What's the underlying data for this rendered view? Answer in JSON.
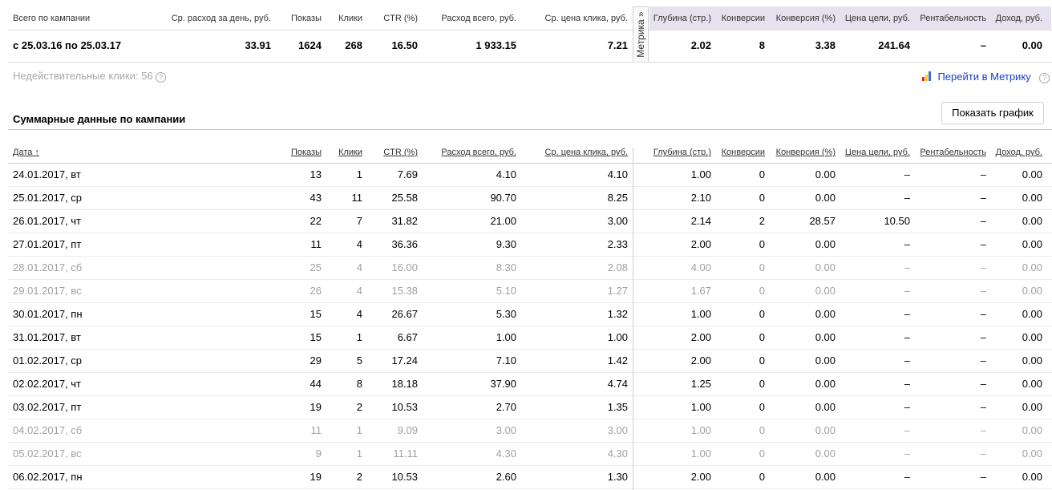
{
  "summary": {
    "labels": {
      "total": "Всего по кампании",
      "avg_spend": "Ср. расход за день, руб.",
      "shows": "Показы",
      "clicks": "Клики",
      "ctr": "CTR (%)",
      "spend_total": "Расход всего, руб.",
      "avg_cpc": "Ср. цена клика, руб.",
      "depth": "Глубина (стр.)",
      "conversions": "Конверсии",
      "conv_rate": "Конверсия (%)",
      "goal_cost": "Цена цели, руб.",
      "profitability": "Рентабельность",
      "income": "Доход, руб."
    },
    "values": {
      "period": "с 25.03.16 по 25.03.17",
      "avg_spend": "33.91",
      "shows": "1624",
      "clicks": "268",
      "ctr": "16.50",
      "spend_total": "1 933.15",
      "avg_cpc": "7.21",
      "depth": "2.02",
      "conversions": "8",
      "conv_rate": "3.38",
      "goal_cost": "241.64",
      "profitability": "–",
      "income": "0.00"
    },
    "metrika_tab": "Метрика »"
  },
  "invalid_clicks": {
    "label": "Недействительные клики: 56",
    "help": "?"
  },
  "metrika_link": {
    "label": "Перейти в Метрику",
    "help": "?"
  },
  "section": {
    "title": "Суммарные данные по кампании",
    "chart_button": "Показать график"
  },
  "table": {
    "headers": {
      "date": "Дата ↑",
      "shows": "Показы",
      "clicks": "Клики",
      "ctr": "CTR (%)",
      "spend_total": "Расход всего, руб.",
      "avg_cpc": "Ср. цена клика, руб.",
      "depth": "Глубина (стр.)",
      "conversions": "Конверсии",
      "conv_rate": "Конверсия (%)",
      "goal_cost": "Цена цели, руб.",
      "profitability": "Рентабельность",
      "income": "Доход, руб."
    },
    "rows": [
      {
        "date": "24.01.2017, вт",
        "shows": "13",
        "clicks": "1",
        "ctr": "7.69",
        "spend": "4.10",
        "cpc": "4.10",
        "depth": "1.00",
        "conv": "0",
        "conv_rate": "0.00",
        "goal": "–",
        "profit": "–",
        "income": "0.00",
        "weekend": false
      },
      {
        "date": "25.01.2017, ср",
        "shows": "43",
        "clicks": "11",
        "ctr": "25.58",
        "spend": "90.70",
        "cpc": "8.25",
        "depth": "2.10",
        "conv": "0",
        "conv_rate": "0.00",
        "goal": "–",
        "profit": "–",
        "income": "0.00",
        "weekend": false
      },
      {
        "date": "26.01.2017, чт",
        "shows": "22",
        "clicks": "7",
        "ctr": "31.82",
        "spend": "21.00",
        "cpc": "3.00",
        "depth": "2.14",
        "conv": "2",
        "conv_rate": "28.57",
        "goal": "10.50",
        "profit": "–",
        "income": "0.00",
        "weekend": false
      },
      {
        "date": "27.01.2017, пт",
        "shows": "11",
        "clicks": "4",
        "ctr": "36.36",
        "spend": "9.30",
        "cpc": "2.33",
        "depth": "2.00",
        "conv": "0",
        "conv_rate": "0.00",
        "goal": "–",
        "profit": "–",
        "income": "0.00",
        "weekend": false
      },
      {
        "date": "28.01.2017, сб",
        "shows": "25",
        "clicks": "4",
        "ctr": "16.00",
        "spend": "8.30",
        "cpc": "2.08",
        "depth": "4.00",
        "conv": "0",
        "conv_rate": "0.00",
        "goal": "–",
        "profit": "–",
        "income": "0.00",
        "weekend": true
      },
      {
        "date": "29.01.2017, вс",
        "shows": "26",
        "clicks": "4",
        "ctr": "15.38",
        "spend": "5.10",
        "cpc": "1.27",
        "depth": "1.67",
        "conv": "0",
        "conv_rate": "0.00",
        "goal": "–",
        "profit": "–",
        "income": "0.00",
        "weekend": true
      },
      {
        "date": "30.01.2017, пн",
        "shows": "15",
        "clicks": "4",
        "ctr": "26.67",
        "spend": "5.30",
        "cpc": "1.32",
        "depth": "1.00",
        "conv": "0",
        "conv_rate": "0.00",
        "goal": "–",
        "profit": "–",
        "income": "0.00",
        "weekend": false
      },
      {
        "date": "31.01.2017, вт",
        "shows": "15",
        "clicks": "1",
        "ctr": "6.67",
        "spend": "1.00",
        "cpc": "1.00",
        "depth": "2.00",
        "conv": "0",
        "conv_rate": "0.00",
        "goal": "–",
        "profit": "–",
        "income": "0.00",
        "weekend": false
      },
      {
        "date": "01.02.2017, ср",
        "shows": "29",
        "clicks": "5",
        "ctr": "17.24",
        "spend": "7.10",
        "cpc": "1.42",
        "depth": "2.00",
        "conv": "0",
        "conv_rate": "0.00",
        "goal": "–",
        "profit": "–",
        "income": "0.00",
        "weekend": false
      },
      {
        "date": "02.02.2017, чт",
        "shows": "44",
        "clicks": "8",
        "ctr": "18.18",
        "spend": "37.90",
        "cpc": "4.74",
        "depth": "1.25",
        "conv": "0",
        "conv_rate": "0.00",
        "goal": "–",
        "profit": "–",
        "income": "0.00",
        "weekend": false
      },
      {
        "date": "03.02.2017, пт",
        "shows": "19",
        "clicks": "2",
        "ctr": "10.53",
        "spend": "2.70",
        "cpc": "1.35",
        "depth": "1.00",
        "conv": "0",
        "conv_rate": "0.00",
        "goal": "–",
        "profit": "–",
        "income": "0.00",
        "weekend": false
      },
      {
        "date": "04.02.2017, сб",
        "shows": "11",
        "clicks": "1",
        "ctr": "9.09",
        "spend": "3.00",
        "cpc": "3.00",
        "depth": "1.00",
        "conv": "0",
        "conv_rate": "0.00",
        "goal": "–",
        "profit": "–",
        "income": "0.00",
        "weekend": true
      },
      {
        "date": "05.02.2017, вс",
        "shows": "9",
        "clicks": "1",
        "ctr": "11.11",
        "spend": "4.30",
        "cpc": "4.30",
        "depth": "1.00",
        "conv": "0",
        "conv_rate": "0.00",
        "goal": "–",
        "profit": "–",
        "income": "0.00",
        "weekend": true
      },
      {
        "date": "06.02.2017, пн",
        "shows": "19",
        "clicks": "2",
        "ctr": "10.53",
        "spend": "2.60",
        "cpc": "1.30",
        "depth": "2.00",
        "conv": "0",
        "conv_rate": "0.00",
        "goal": "–",
        "profit": "–",
        "income": "0.00",
        "weekend": false
      }
    ]
  },
  "colors": {
    "metrika_band": "#e6e1ee",
    "link": "#1a3dc1",
    "weekend_text": "#a0a0a0"
  }
}
